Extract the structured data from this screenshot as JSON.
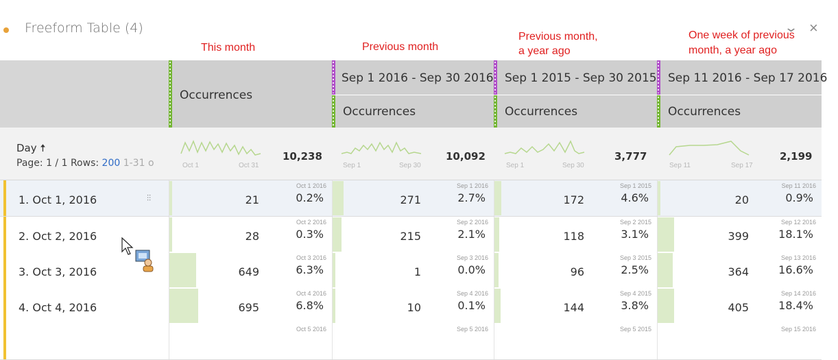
{
  "panel": {
    "title": "Freeform Table (4)"
  },
  "annotations": {
    "col1": "This month",
    "col2": "Previous month",
    "col3_line1": "Previous month,",
    "col3_line2": "a year ago",
    "col4_line1": "One week of previous",
    "col4_line2": "month, a year ago"
  },
  "header": {
    "metric": "Occurrences",
    "ranges": [
      "Sep 1 2016 - Sep 30 2016",
      "Sep 1 2015 - Sep 30 2015",
      "Sep 11 2016 - Sep 17 2016"
    ]
  },
  "summary": {
    "dimension": "Day",
    "page_label": "Page:",
    "page_value": "1 / 1",
    "rows_label": "Rows:",
    "rows_value": "200",
    "range_text": "1-31 o",
    "columns": [
      {
        "total": "10,238",
        "start": "Oct 1",
        "end": "Oct 31"
      },
      {
        "total": "10,092",
        "start": "Sep 1",
        "end": "Sep 30"
      },
      {
        "total": "3,777",
        "start": "Sep 1",
        "end": "Sep 30"
      },
      {
        "total": "2,199",
        "start": "Sep 11",
        "end": "Sep 17"
      }
    ]
  },
  "rows": [
    {
      "label": "1.  Oct 1, 2016",
      "cells": [
        {
          "value": "21",
          "pct": "0.2%",
          "date": "Oct 1 2016"
        },
        {
          "value": "271",
          "pct": "2.7%",
          "date": "Sep 1 2016"
        },
        {
          "value": "172",
          "pct": "4.6%",
          "date": "Sep 1 2015"
        },
        {
          "value": "20",
          "pct": "0.9%",
          "date": "Sep 11 2016"
        }
      ]
    },
    {
      "label": "2.  Oct 2, 2016",
      "cells": [
        {
          "value": "28",
          "pct": "0.3%",
          "date": "Oct 2 2016"
        },
        {
          "value": "215",
          "pct": "2.1%",
          "date": "Sep 2 2016"
        },
        {
          "value": "118",
          "pct": "3.1%",
          "date": "Sep 2 2015"
        },
        {
          "value": "399",
          "pct": "18.1%",
          "date": "Sep 12 2016"
        }
      ]
    },
    {
      "label": "3.  Oct 3, 2016",
      "cells": [
        {
          "value": "649",
          "pct": "6.3%",
          "date": "Oct 3 2016"
        },
        {
          "value": "1",
          "pct": "0.0%",
          "date": "Sep 3 2016"
        },
        {
          "value": "96",
          "pct": "2.5%",
          "date": "Sep 3 2015"
        },
        {
          "value": "364",
          "pct": "16.6%",
          "date": "Sep 13 2016"
        }
      ]
    },
    {
      "label": "4.  Oct 4, 2016",
      "cells": [
        {
          "value": "695",
          "pct": "6.8%",
          "date": "Oct 4 2016"
        },
        {
          "value": "10",
          "pct": "0.1%",
          "date": "Sep 4 2016"
        },
        {
          "value": "144",
          "pct": "3.8%",
          "date": "Sep 4 2015"
        },
        {
          "value": "405",
          "pct": "18.4%",
          "date": "Sep 14 2016"
        }
      ]
    },
    {
      "label": "",
      "cells": [
        {
          "value": "",
          "pct": "",
          "date": "Oct 5 2016"
        },
        {
          "value": "",
          "pct": "",
          "date": "Sep 5 2016"
        },
        {
          "value": "",
          "pct": "",
          "date": "Sep 5 2015"
        },
        {
          "value": "",
          "pct": "",
          "date": "Sep 15 2016"
        }
      ]
    }
  ],
  "colors": {
    "accent_green": "#74b634",
    "accent_purple": "#b04fc8",
    "row_marker": "#f1c232",
    "annotation_red": "#e02020",
    "link_blue": "#2f6bc6"
  },
  "icons": {
    "status": "dot-icon",
    "collapse": "chevron-down-icon",
    "close": "close-icon",
    "sort": "arrow-up-icon",
    "breakdown": "breakdown-icon"
  }
}
